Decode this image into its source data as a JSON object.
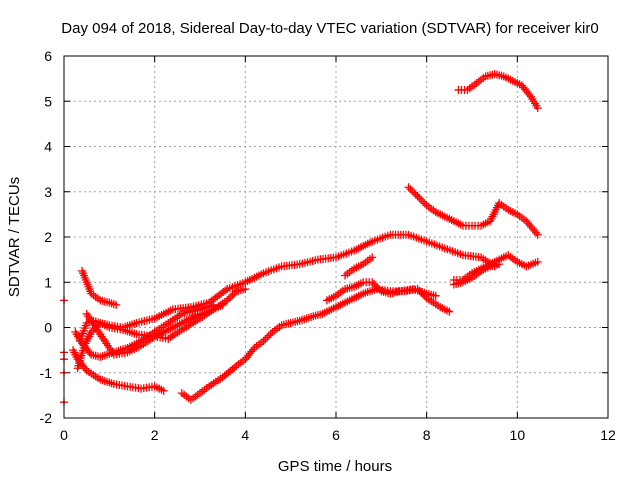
{
  "chart_data": {
    "type": "scatter",
    "title": "Day 094 of 2018, Sidereal Day-to-day VTEC variation (SDTVAR) for receiver kir0",
    "xlabel": "GPS time / hours",
    "ylabel": "SDTVAR / TECUs",
    "xlim": [
      0,
      12
    ],
    "ylim": [
      -2,
      6
    ],
    "xticks": [
      0,
      2,
      4,
      6,
      8,
      10,
      12
    ],
    "yticks": [
      -2,
      -1,
      0,
      1,
      2,
      3,
      4,
      5,
      6
    ],
    "grid": true,
    "marker": "+",
    "color": "#ff0000",
    "tracks": [
      [
        [
          0.4,
          1.25
        ],
        [
          0.5,
          1.0
        ],
        [
          0.6,
          0.75
        ],
        [
          0.8,
          0.6
        ],
        [
          1.0,
          0.55
        ],
        [
          1.15,
          0.5
        ]
      ],
      [
        [
          0.3,
          -0.9
        ],
        [
          0.45,
          -0.4
        ],
        [
          0.6,
          -0.1
        ],
        [
          0.8,
          0.1
        ],
        [
          1.0,
          0.0
        ],
        [
          1.3,
          -0.05
        ],
        [
          1.6,
          -0.15
        ],
        [
          2.0,
          -0.2
        ],
        [
          2.3,
          -0.25
        ],
        [
          2.6,
          -0.05
        ],
        [
          3.0,
          0.2
        ],
        [
          3.3,
          0.4
        ],
        [
          3.6,
          0.6
        ],
        [
          3.8,
          0.8
        ],
        [
          4.0,
          0.85
        ]
      ],
      [
        [
          0.35,
          -0.3
        ],
        [
          0.5,
          0.1
        ],
        [
          0.65,
          0.15
        ],
        [
          0.8,
          0.1
        ],
        [
          1.0,
          0.05
        ],
        [
          1.3,
          0.0
        ],
        [
          1.6,
          0.1
        ],
        [
          2.0,
          0.2
        ],
        [
          2.4,
          0.4
        ],
        [
          2.8,
          0.45
        ],
        [
          3.2,
          0.55
        ],
        [
          3.6,
          0.85
        ],
        [
          4.0,
          1.0
        ],
        [
          4.4,
          1.2
        ],
        [
          4.8,
          1.35
        ],
        [
          5.2,
          1.4
        ],
        [
          5.6,
          1.5
        ],
        [
          6.0,
          1.55
        ],
        [
          6.4,
          1.7
        ],
        [
          6.8,
          1.9
        ],
        [
          7.2,
          2.05
        ],
        [
          7.6,
          2.05
        ],
        [
          8.0,
          1.9
        ],
        [
          8.4,
          1.75
        ],
        [
          8.8,
          1.6
        ],
        [
          9.2,
          1.55
        ],
        [
          9.5,
          1.35
        ]
      ],
      [
        [
          0.2,
          -0.5
        ],
        [
          0.3,
          -0.7
        ],
        [
          0.5,
          -0.95
        ],
        [
          0.8,
          -1.15
        ],
        [
          1.1,
          -1.25
        ],
        [
          1.4,
          -1.3
        ],
        [
          1.7,
          -1.35
        ],
        [
          2.0,
          -1.3
        ],
        [
          2.2,
          -1.4
        ]
      ],
      [
        [
          0.25,
          -0.1
        ],
        [
          0.4,
          -0.35
        ],
        [
          0.6,
          -0.6
        ],
        [
          0.8,
          -0.65
        ],
        [
          1.1,
          -0.55
        ],
        [
          1.4,
          -0.45
        ],
        [
          1.7,
          -0.3
        ],
        [
          2.0,
          -0.1
        ],
        [
          2.3,
          0.1
        ],
        [
          2.6,
          0.3
        ],
        [
          3.0,
          0.4
        ],
        [
          3.3,
          0.5
        ]
      ],
      [
        [
          0.5,
          0.3
        ],
        [
          0.7,
          0.0
        ],
        [
          0.9,
          -0.3
        ],
        [
          1.1,
          -0.6
        ],
        [
          1.4,
          -0.55
        ],
        [
          1.7,
          -0.4
        ],
        [
          2.0,
          -0.2
        ],
        [
          2.3,
          -0.05
        ],
        [
          2.6,
          0.1
        ],
        [
          2.9,
          0.25
        ],
        [
          3.2,
          0.35
        ],
        [
          3.5,
          0.5
        ]
      ],
      [
        [
          2.6,
          -1.45
        ],
        [
          2.8,
          -1.6
        ],
        [
          3.0,
          -1.45
        ],
        [
          3.2,
          -1.3
        ],
        [
          3.5,
          -1.1
        ],
        [
          3.8,
          -0.85
        ],
        [
          4.0,
          -0.7
        ],
        [
          4.2,
          -0.45
        ],
        [
          4.4,
          -0.3
        ],
        [
          4.6,
          -0.1
        ],
        [
          4.8,
          0.05
        ],
        [
          5.0,
          0.1
        ],
        [
          5.2,
          0.15
        ],
        [
          5.5,
          0.25
        ],
        [
          5.7,
          0.3
        ],
        [
          6.0,
          0.45
        ],
        [
          6.3,
          0.6
        ],
        [
          6.6,
          0.75
        ],
        [
          6.9,
          0.85
        ],
        [
          7.2,
          0.8
        ],
        [
          7.5,
          0.8
        ],
        [
          7.8,
          0.85
        ],
        [
          8.0,
          0.65
        ],
        [
          8.3,
          0.45
        ],
        [
          8.5,
          0.35
        ]
      ],
      [
        [
          5.8,
          0.6
        ],
        [
          6.0,
          0.7
        ],
        [
          6.2,
          0.85
        ],
        [
          6.4,
          0.9
        ],
        [
          6.6,
          1.0
        ],
        [
          6.8,
          1.0
        ],
        [
          7.0,
          0.8
        ],
        [
          7.2,
          0.75
        ],
        [
          7.4,
          0.8
        ],
        [
          7.7,
          0.85
        ],
        [
          8.0,
          0.75
        ],
        [
          8.2,
          0.7
        ]
      ],
      [
        [
          6.2,
          1.15
        ],
        [
          6.4,
          1.3
        ],
        [
          6.6,
          1.4
        ],
        [
          6.8,
          1.55
        ]
      ],
      [
        [
          8.7,
          5.25
        ],
        [
          8.9,
          5.25
        ],
        [
          9.1,
          5.4
        ],
        [
          9.3,
          5.55
        ],
        [
          9.5,
          5.6
        ],
        [
          9.7,
          5.55
        ],
        [
          9.9,
          5.45
        ],
        [
          10.1,
          5.35
        ],
        [
          10.3,
          5.1
        ],
        [
          10.45,
          4.85
        ]
      ],
      [
        [
          7.6,
          3.1
        ],
        [
          7.8,
          2.9
        ],
        [
          8.0,
          2.7
        ],
        [
          8.2,
          2.55
        ],
        [
          8.4,
          2.45
        ],
        [
          8.6,
          2.35
        ],
        [
          8.8,
          2.25
        ],
        [
          9.0,
          2.25
        ],
        [
          9.2,
          2.25
        ],
        [
          9.4,
          2.35
        ],
        [
          9.6,
          2.75
        ],
        [
          9.8,
          2.6
        ],
        [
          10.0,
          2.5
        ],
        [
          10.2,
          2.35
        ],
        [
          10.45,
          2.05
        ]
      ],
      [
        [
          8.6,
          1.05
        ],
        [
          8.8,
          1.05
        ],
        [
          9.0,
          1.2
        ],
        [
          9.2,
          1.3
        ],
        [
          9.4,
          1.4
        ],
        [
          9.6,
          1.5
        ],
        [
          9.8,
          1.6
        ],
        [
          10.0,
          1.45
        ],
        [
          10.2,
          1.35
        ],
        [
          10.45,
          1.45
        ]
      ],
      [
        [
          8.6,
          0.95
        ],
        [
          8.8,
          1.0
        ],
        [
          9.0,
          1.1
        ],
        [
          9.2,
          1.25
        ],
        [
          9.4,
          1.35
        ],
        [
          9.6,
          1.4
        ]
      ]
    ],
    "isolated_points": [
      [
        0.0,
        0.6
      ],
      [
        0.0,
        -0.55
      ],
      [
        0.0,
        -0.7
      ],
      [
        0.0,
        -1.0
      ],
      [
        0.0,
        -1.65
      ]
    ]
  }
}
